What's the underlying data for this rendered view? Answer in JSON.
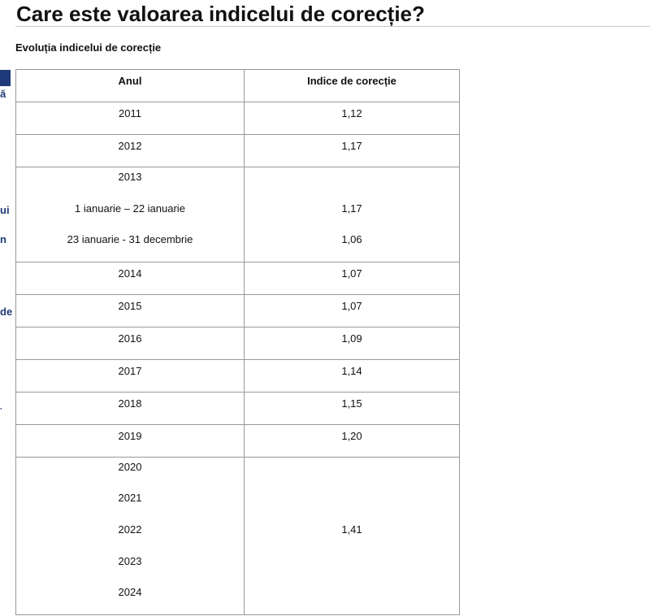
{
  "title": "Care este valoarea indicelui de corecție?",
  "subtitle": "Evoluția indicelui de corecție",
  "sidebar_fragments": [
    "ă",
    "ui",
    "n",
    "de",
    "·"
  ],
  "table": {
    "headers": [
      "Anul",
      "Indice de corecție"
    ],
    "rows": [
      {
        "years": [
          "2011"
        ],
        "values": [
          "1,12"
        ]
      },
      {
        "years": [
          "2012"
        ],
        "values": [
          "1,17"
        ]
      },
      {
        "years": [
          "2013",
          "1 ianuarie – 22 ianuarie",
          "23 ianuarie - 31 decembrie"
        ],
        "values": [
          "",
          "1,17",
          "1,06"
        ]
      },
      {
        "years": [
          "2014"
        ],
        "values": [
          "1,07"
        ]
      },
      {
        "years": [
          "2015"
        ],
        "values": [
          "1,07"
        ]
      },
      {
        "years": [
          "2016"
        ],
        "values": [
          "1,09"
        ]
      },
      {
        "years": [
          "2017"
        ],
        "values": [
          "1,14"
        ]
      },
      {
        "years": [
          "2018"
        ],
        "values": [
          "1,15"
        ]
      },
      {
        "years": [
          "2019"
        ],
        "values": [
          "1,20"
        ]
      },
      {
        "years": [
          "2020",
          "2021",
          "2022",
          "2023",
          "2024"
        ],
        "values": [
          "",
          "",
          "1,41",
          "",
          ""
        ]
      }
    ]
  }
}
